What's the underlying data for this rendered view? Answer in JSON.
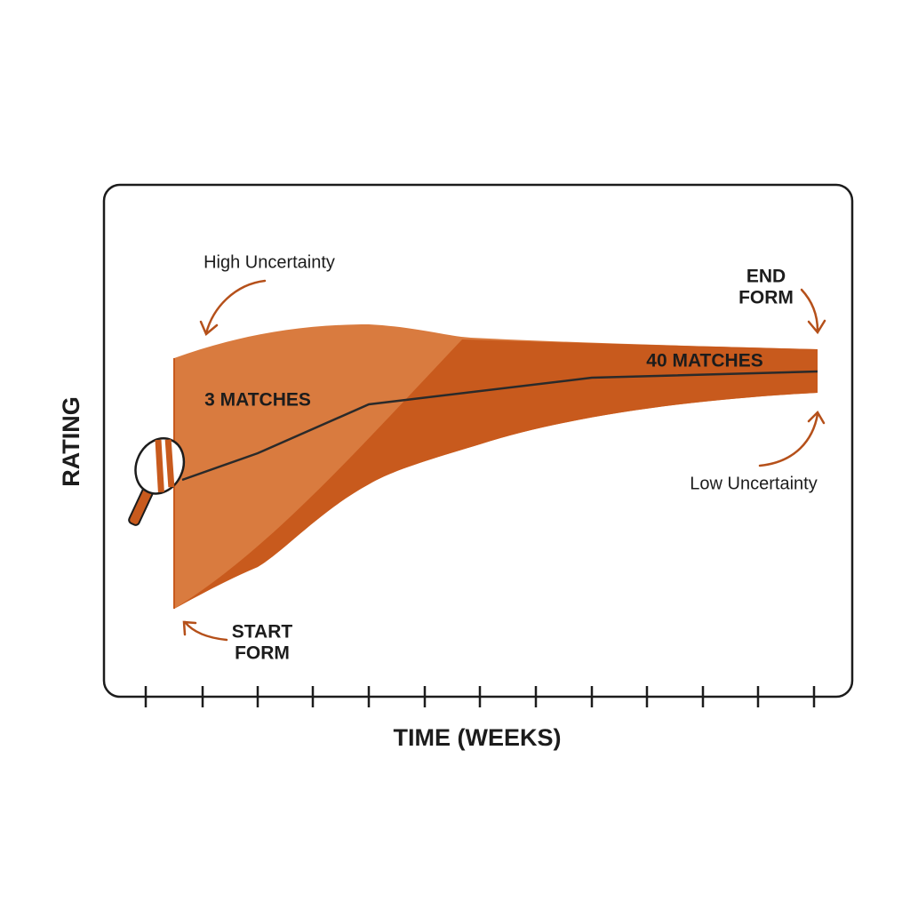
{
  "annotations": {
    "high_uncertainty": "High Uncertainty",
    "end_form": [
      "END",
      "FORM"
    ],
    "forty_matches": "40 MATCHES",
    "three_matches": "3 MATCHES",
    "low_uncertainty": "Low Uncertainty",
    "start_form": [
      "START",
      "FORM"
    ]
  },
  "axes": {
    "y_label": "RATING",
    "x_label": "TIME (WEEKS)"
  }
}
